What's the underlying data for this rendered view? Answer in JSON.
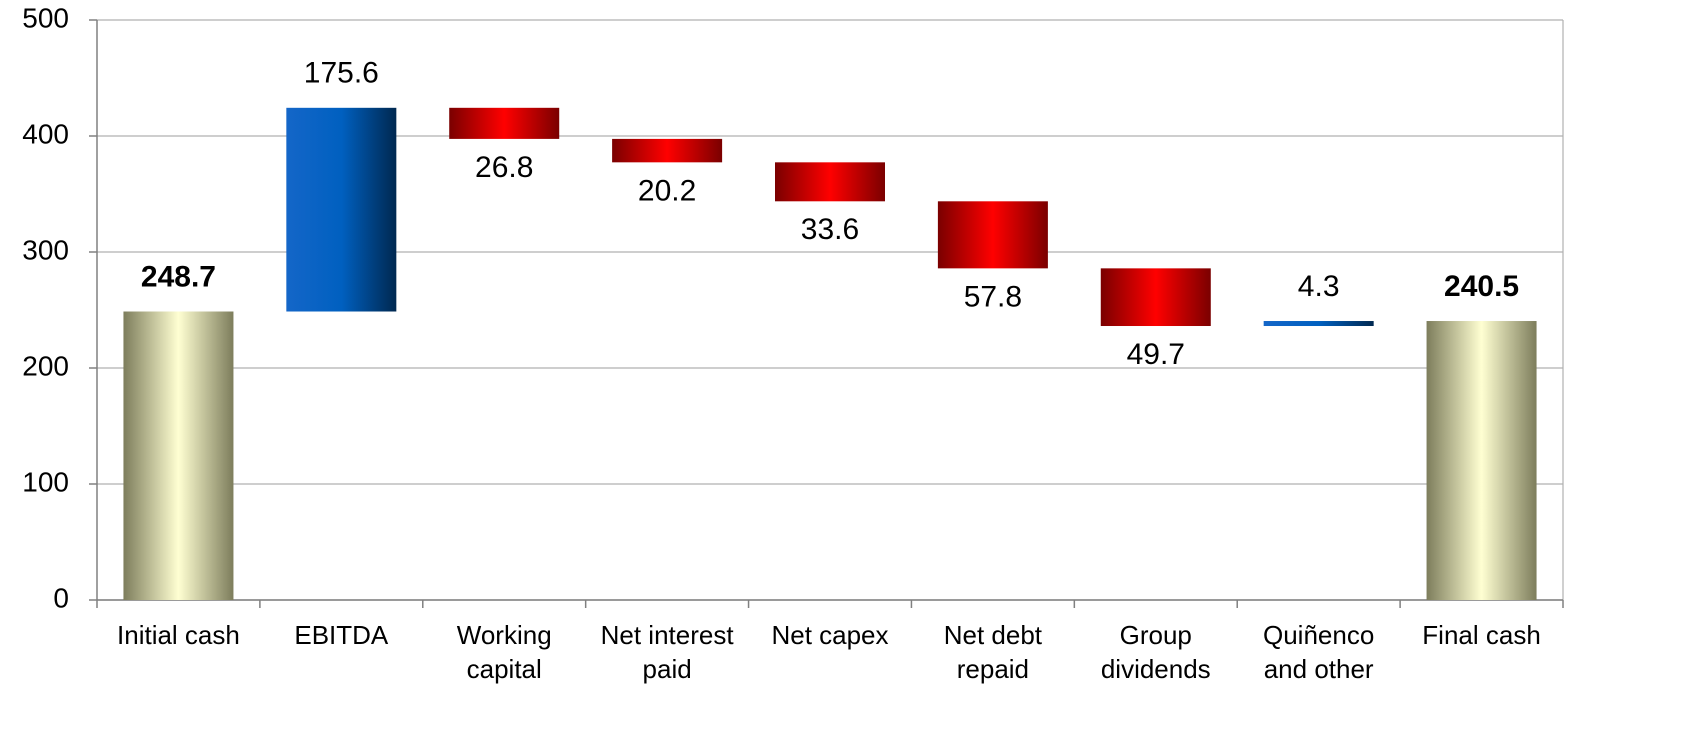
{
  "chart_data": {
    "type": "waterfall",
    "categories": [
      "Initial cash",
      "EBITDA",
      "Working capital",
      "Net interest paid",
      "Net capex",
      "Net debt repaid",
      "Group dividends",
      "Quiñenco and other",
      "Final cash"
    ],
    "values": [
      248.7,
      175.6,
      -26.8,
      -20.2,
      -33.6,
      -57.8,
      -49.7,
      4.3,
      240.5
    ],
    "value_labels": [
      "248.7",
      "175.6",
      "26.8",
      "20.2",
      "33.6",
      "57.8",
      "49.7",
      "4.3",
      "240.5"
    ],
    "measure": [
      "absolute",
      "relative",
      "relative",
      "relative",
      "relative",
      "relative",
      "relative",
      "relative",
      "absolute"
    ],
    "colors": {
      "absolute": [
        "#7d7d5c",
        "#ffffd2",
        "#7d7d5c"
      ],
      "increase": [
        "#1466c8",
        "#0060c0",
        "#002850"
      ],
      "decrease": [
        "#7a0000",
        "#ff0000",
        "#7a0000"
      ]
    },
    "ylim": [
      0,
      500
    ],
    "yticks": [
      0,
      100,
      200,
      300,
      400,
      500
    ],
    "grid": true
  }
}
